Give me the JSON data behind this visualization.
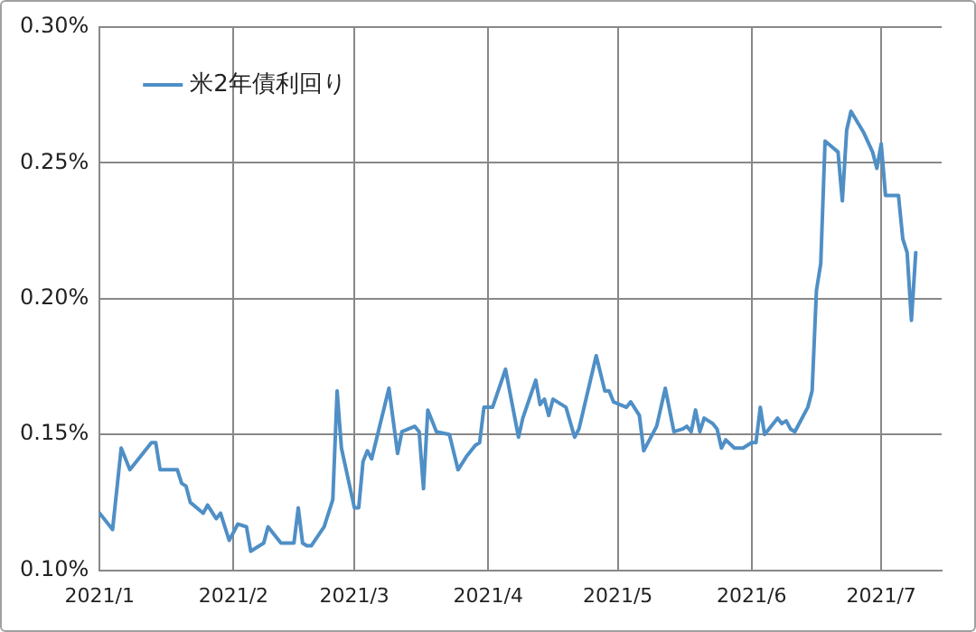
{
  "chart_data": {
    "type": "line",
    "legend": "top left",
    "grid": true,
    "marker": "none",
    "line_style": "solid",
    "xlim": [
      "2021-01-01",
      "2021-07-15"
    ],
    "xticks": [
      {
        "value": "2021-01-01",
        "label": "2021/1"
      },
      {
        "value": "2021-02-01",
        "label": "2021/2"
      },
      {
        "value": "2021-03-01",
        "label": "2021/3"
      },
      {
        "value": "2021-04-01",
        "label": "2021/4"
      },
      {
        "value": "2021-05-01",
        "label": "2021/5"
      },
      {
        "value": "2021-06-01",
        "label": "2021/6"
      },
      {
        "value": "2021-07-01",
        "label": "2021/7"
      }
    ],
    "ylim": [
      0.1,
      0.3
    ],
    "yticks": [
      {
        "value": 0.1,
        "label": "0.10%"
      },
      {
        "value": 0.15,
        "label": "0.15%"
      },
      {
        "value": 0.2,
        "label": "0.20%"
      },
      {
        "value": 0.25,
        "label": "0.25%"
      },
      {
        "value": 0.3,
        "label": "0.30%"
      }
    ],
    "x": [
      "2021-01-01",
      "2021-01-04",
      "2021-01-06",
      "2021-01-08",
      "2021-01-13",
      "2021-01-14",
      "2021-01-15",
      "2021-01-19",
      "2021-01-20",
      "2021-01-21",
      "2021-01-22",
      "2021-01-25",
      "2021-01-26",
      "2021-01-28",
      "2021-01-29",
      "2021-01-31",
      "2021-02-02",
      "2021-02-04",
      "2021-02-05",
      "2021-02-08",
      "2021-02-09",
      "2021-02-12",
      "2021-02-15",
      "2021-02-16",
      "2021-02-17",
      "2021-02-18",
      "2021-02-19",
      "2021-02-22",
      "2021-02-24",
      "2021-02-25",
      "2021-02-26",
      "2021-03-01",
      "2021-03-02",
      "2021-03-03",
      "2021-03-04",
      "2021-03-05",
      "2021-03-09",
      "2021-03-11",
      "2021-03-12",
      "2021-03-15",
      "2021-03-16",
      "2021-03-17",
      "2021-03-18",
      "2021-03-20",
      "2021-03-23",
      "2021-03-25",
      "2021-03-27",
      "2021-03-29",
      "2021-03-30",
      "2021-03-31",
      "2021-04-02",
      "2021-04-05",
      "2021-04-08",
      "2021-04-09",
      "2021-04-12",
      "2021-04-13",
      "2021-04-14",
      "2021-04-15",
      "2021-04-16",
      "2021-04-19",
      "2021-04-21",
      "2021-04-22",
      "2021-04-26",
      "2021-04-28",
      "2021-04-29",
      "2021-04-30",
      "2021-05-03",
      "2021-05-04",
      "2021-05-06",
      "2021-05-07",
      "2021-05-10",
      "2021-05-12",
      "2021-05-14",
      "2021-05-16",
      "2021-05-17",
      "2021-05-18",
      "2021-05-19",
      "2021-05-20",
      "2021-05-21",
      "2021-05-23",
      "2021-05-24",
      "2021-05-25",
      "2021-05-26",
      "2021-05-28",
      "2021-05-30",
      "2021-06-01",
      "2021-06-02",
      "2021-06-03",
      "2021-06-04",
      "2021-06-07",
      "2021-06-08",
      "2021-06-09",
      "2021-06-10",
      "2021-06-11",
      "2021-06-14",
      "2021-06-15",
      "2021-06-16",
      "2021-06-17",
      "2021-06-18",
      "2021-06-21",
      "2021-06-22",
      "2021-06-23",
      "2021-06-24",
      "2021-06-27",
      "2021-06-29",
      "2021-06-30",
      "2021-07-01",
      "2021-07-02",
      "2021-07-05",
      "2021-07-06",
      "2021-07-07",
      "2021-07-08",
      "2021-07-09"
    ],
    "series": [
      {
        "name": "米2年債利回り",
        "color": "#4f8fc6",
        "values": [
          0.121,
          0.115,
          0.145,
          0.137,
          0.147,
          0.147,
          0.137,
          0.137,
          0.132,
          0.131,
          0.125,
          0.121,
          0.124,
          0.119,
          0.121,
          0.111,
          0.117,
          0.116,
          0.107,
          0.11,
          0.116,
          0.11,
          0.11,
          0.123,
          0.11,
          0.109,
          0.109,
          0.116,
          0.126,
          0.166,
          0.145,
          0.123,
          0.123,
          0.14,
          0.144,
          0.141,
          0.167,
          0.143,
          0.151,
          0.153,
          0.151,
          0.13,
          0.159,
          0.151,
          0.15,
          0.137,
          0.142,
          0.146,
          0.147,
          0.16,
          0.16,
          0.174,
          0.149,
          0.156,
          0.17,
          0.161,
          0.163,
          0.157,
          0.163,
          0.16,
          0.149,
          0.152,
          0.179,
          0.166,
          0.166,
          0.162,
          0.16,
          0.162,
          0.157,
          0.144,
          0.153,
          0.167,
          0.151,
          0.152,
          0.153,
          0.151,
          0.159,
          0.151,
          0.156,
          0.154,
          0.152,
          0.145,
          0.148,
          0.145,
          0.145,
          0.147,
          0.147,
          0.16,
          0.15,
          0.156,
          0.154,
          0.155,
          0.152,
          0.151,
          0.16,
          0.166,
          0.203,
          0.213,
          0.258,
          0.254,
          0.236,
          0.262,
          0.269,
          0.261,
          0.254,
          0.248,
          0.257,
          0.238,
          0.238,
          0.222,
          0.217,
          0.192,
          0.217
        ]
      }
    ]
  }
}
